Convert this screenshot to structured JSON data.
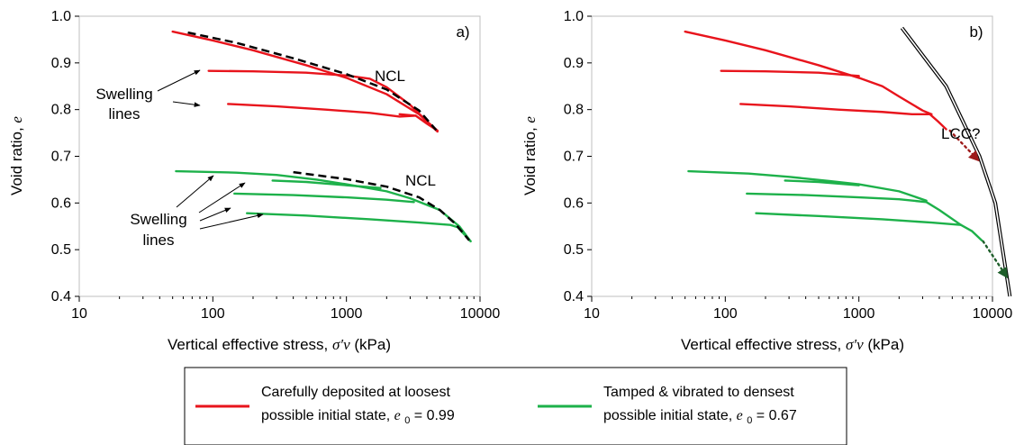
{
  "chart_data": [
    {
      "type": "line",
      "panel_label": "a)",
      "xlabel": "Vertical effective stress,",
      "xlabel_symbol": "σ′v",
      "xlabel_unit": "(kPa)",
      "ylabel": "Void ratio,",
      "ylabel_symbol": "e",
      "xscale": "log",
      "xlim": [
        10,
        10000
      ],
      "ylim": [
        0.4,
        1.0
      ],
      "xticks": [
        "10",
        "100",
        "1000",
        "10000"
      ],
      "yticks": [
        "0.4",
        "0.5",
        "0.6",
        "0.7",
        "0.8",
        "0.9",
        "1.0"
      ],
      "annotations": [
        {
          "text": "NCL"
        },
        {
          "lines": [
            "Swelling",
            "lines"
          ]
        },
        {
          "text": "NCL"
        },
        {
          "lines": [
            "Swelling",
            "lines"
          ]
        }
      ],
      "series": [
        {
          "group": "loose",
          "color": "#e8141c",
          "style": "solid",
          "x": [
            50,
            100,
            200,
            500,
            1000,
            2000,
            3500,
            4800
          ],
          "y": [
            0.967,
            0.948,
            0.927,
            0.895,
            0.868,
            0.833,
            0.79,
            0.753
          ]
        },
        {
          "group": "loose",
          "color": "#e8141c",
          "style": "solid",
          "x": [
            93,
            200,
            500,
            1000,
            1500,
            2000,
            3000,
            4000,
            4800
          ],
          "y": [
            0.883,
            0.882,
            0.879,
            0.873,
            0.866,
            0.848,
            0.81,
            0.775,
            0.755
          ]
        },
        {
          "group": "loose",
          "color": "#e8141c",
          "style": "solid",
          "x": [
            130,
            300,
            700,
            1500,
            2500,
            3300,
            2500
          ],
          "y": [
            0.812,
            0.807,
            0.8,
            0.793,
            0.785,
            0.787,
            0.79
          ]
        },
        {
          "group": "loose",
          "color": "#e8141c",
          "style": "solid",
          "x": [
            3300,
            4000,
            4800
          ],
          "y": [
            0.787,
            0.77,
            0.755
          ]
        },
        {
          "group": "dense",
          "color": "#1db14a",
          "style": "solid",
          "x": [
            53,
            150,
            300,
            600,
            1000,
            2000,
            3000,
            5000,
            7000,
            8500
          ],
          "y": [
            0.668,
            0.665,
            0.66,
            0.65,
            0.64,
            0.625,
            0.61,
            0.585,
            0.55,
            0.518
          ]
        },
        {
          "group": "dense",
          "color": "#1db14a",
          "style": "solid",
          "x": [
            280,
            500,
            1000,
            1800
          ],
          "y": [
            0.648,
            0.645,
            0.638,
            0.632
          ]
        },
        {
          "group": "dense",
          "color": "#1db14a",
          "style": "solid",
          "x": [
            145,
            400,
            1000,
            2000,
            3200
          ],
          "y": [
            0.62,
            0.617,
            0.612,
            0.607,
            0.602
          ]
        },
        {
          "group": "dense",
          "color": "#1db14a",
          "style": "solid",
          "x": [
            180,
            500,
            1500,
            3500,
            6000,
            6800,
            7500,
            8500
          ],
          "y": [
            0.578,
            0.573,
            0.565,
            0.558,
            0.553,
            0.548,
            0.535,
            0.518
          ]
        },
        {
          "group": "ncl",
          "color": "#000000",
          "style": "dashed",
          "x": [
            65,
            150,
            400,
            1000,
            2000,
            3500,
            4700
          ],
          "y": [
            0.965,
            0.943,
            0.91,
            0.876,
            0.843,
            0.798,
            0.756
          ]
        },
        {
          "group": "ncl",
          "color": "#000000",
          "style": "dashed",
          "x": [
            400,
            1000,
            2000,
            3500,
            5000,
            6500,
            8300
          ],
          "y": [
            0.666,
            0.651,
            0.635,
            0.612,
            0.585,
            0.556,
            0.52
          ]
        }
      ]
    },
    {
      "type": "line",
      "panel_label": "b)",
      "xlabel": "Vertical effective stress,",
      "xlabel_symbol": "σ′v",
      "xlabel_unit": "(kPa)",
      "ylabel": "Void ratio,",
      "ylabel_symbol": "e",
      "xscale": "log",
      "xlim": [
        10,
        10000
      ],
      "ylim": [
        0.4,
        1.0
      ],
      "xticks": [
        "10",
        "100",
        "1000",
        "10000"
      ],
      "yticks": [
        "0.4",
        "0.5",
        "0.6",
        "0.7",
        "0.8",
        "0.9",
        "1.0"
      ],
      "annotations": [
        {
          "text": "LCC?"
        }
      ],
      "lcc_line": {
        "x": [
          2100,
          4500,
          8000,
          10500,
          13500
        ],
        "y": [
          0.975,
          0.85,
          0.7,
          0.6,
          0.4
        ]
      },
      "extrapolation_arrows": [
        {
          "color": "#9e1b1b",
          "x": [
            4800,
            7800
          ],
          "y": [
            0.755,
            0.692
          ]
        },
        {
          "color": "#1e5e2a",
          "x": [
            8500,
            12800
          ],
          "y": [
            0.518,
            0.442
          ]
        }
      ],
      "series": [
        {
          "group": "loose",
          "color": "#e8141c",
          "style": "solid",
          "x": [
            50,
            100,
            200,
            500,
            1000
          ],
          "y": [
            0.967,
            0.948,
            0.927,
            0.895,
            0.868
          ]
        },
        {
          "group": "loose",
          "color": "#e8141c",
          "style": "solid",
          "x": [
            93,
            200,
            500,
            1000
          ],
          "y": [
            0.883,
            0.882,
            0.879,
            0.872
          ]
        },
        {
          "group": "loose",
          "color": "#e8141c",
          "style": "solid",
          "x": [
            1000,
            1500,
            2000,
            3000,
            3500
          ],
          "y": [
            0.868,
            0.85,
            0.828,
            0.798,
            0.79
          ]
        },
        {
          "group": "loose",
          "color": "#e8141c",
          "style": "solid",
          "x": [
            130,
            300,
            700,
            1500,
            2500,
            3400
          ],
          "y": [
            0.812,
            0.807,
            0.8,
            0.795,
            0.79,
            0.79
          ]
        },
        {
          "group": "loose",
          "color": "#e8141c",
          "style": "solid",
          "x": [
            3400,
            3900,
            4500
          ],
          "y": [
            0.79,
            0.775,
            0.758
          ]
        },
        {
          "group": "dense",
          "color": "#1db14a",
          "style": "solid",
          "x": [
            53,
            150,
            300,
            600,
            1000
          ],
          "y": [
            0.668,
            0.663,
            0.656,
            0.647,
            0.64
          ]
        },
        {
          "group": "dense",
          "color": "#1db14a",
          "style": "solid",
          "x": [
            280,
            500,
            1000
          ],
          "y": [
            0.648,
            0.645,
            0.638
          ]
        },
        {
          "group": "dense",
          "color": "#1db14a",
          "style": "solid",
          "x": [
            1000,
            2000,
            3200
          ],
          "y": [
            0.64,
            0.625,
            0.605
          ]
        },
        {
          "group": "dense",
          "color": "#1db14a",
          "style": "solid",
          "x": [
            145,
            400,
            1000,
            2000,
            3200
          ],
          "y": [
            0.62,
            0.617,
            0.612,
            0.608,
            0.602
          ]
        },
        {
          "group": "dense",
          "color": "#1db14a",
          "style": "solid",
          "x": [
            3200,
            4000,
            5800
          ],
          "y": [
            0.602,
            0.585,
            0.553
          ]
        },
        {
          "group": "dense",
          "color": "#1db14a",
          "style": "solid",
          "x": [
            170,
            500,
            1500,
            3500,
            5800
          ],
          "y": [
            0.578,
            0.572,
            0.565,
            0.558,
            0.553
          ]
        },
        {
          "group": "dense",
          "color": "#1db14a",
          "style": "solid",
          "x": [
            5800,
            7000,
            8300
          ],
          "y": [
            0.553,
            0.54,
            0.52
          ]
        }
      ]
    }
  ],
  "legend": {
    "items": [
      {
        "color": "#e8141c",
        "line1": "Carefully deposited at loosest",
        "line2_prefix": "possible initial state, ",
        "line2_symbol": "e",
        "line2_subscript": "0",
        "line2_suffix": " = 0.99"
      },
      {
        "color": "#1db14a",
        "line1": "Tamped & vibrated to densest",
        "line2_prefix": "possible initial state, ",
        "line2_symbol": "e",
        "line2_subscript": "0",
        "line2_suffix": " = 0.67"
      }
    ]
  }
}
